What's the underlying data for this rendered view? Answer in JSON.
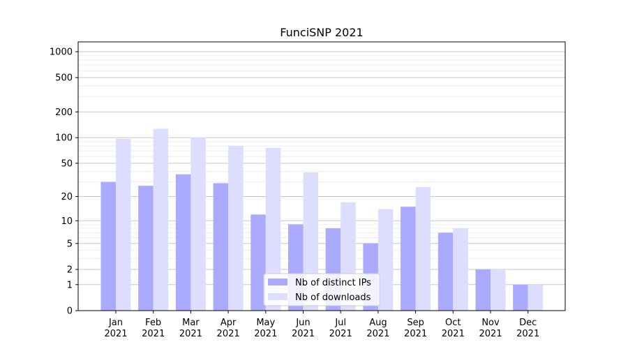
{
  "chart_data": {
    "type": "bar",
    "title": "FunciSNP 2021",
    "xlabel": "",
    "ylabel": "",
    "yscale": "symlog",
    "ylim": [
      0,
      1300
    ],
    "yticks": [
      0,
      1,
      2,
      5,
      10,
      20,
      50,
      100,
      200,
      500,
      1000
    ],
    "grid": true,
    "legend_position": "bottom-center",
    "categories": [
      "Jan\n2021",
      "Feb\n2021",
      "Mar\n2021",
      "Apr\n2021",
      "May\n2021",
      "Jun\n2021",
      "Jul\n2021",
      "Aug\n2021",
      "Sep\n2021",
      "Oct\n2021",
      "Nov\n2021",
      "Dec\n2021"
    ],
    "series": [
      {
        "name": "Nb of distinct IPs",
        "color": "#aaaaff",
        "values": [
          30,
          27,
          37,
          29,
          12,
          9,
          8,
          5,
          15,
          7,
          2,
          1
        ]
      },
      {
        "name": "Nb of downloads",
        "color": "#ddddff",
        "values": [
          97,
          127,
          101,
          80,
          76,
          39,
          17,
          14,
          26,
          8,
          2,
          1
        ]
      }
    ]
  }
}
